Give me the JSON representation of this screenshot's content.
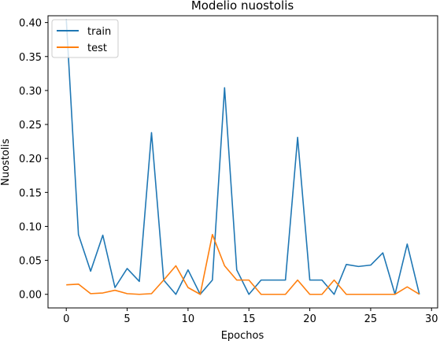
{
  "chart_data": {
    "type": "line",
    "title": "Modelio nuostolis",
    "xlabel": "Epochos",
    "ylabel": "Nuostolis",
    "xlim": [
      -1.5,
      30.5
    ],
    "ylim": [
      -0.02,
      0.41
    ],
    "xticks": [
      0,
      5,
      10,
      15,
      20,
      25,
      30
    ],
    "xtick_labels": [
      "0",
      "5",
      "10",
      "15",
      "20",
      "25",
      "30"
    ],
    "yticks": [
      0.0,
      0.05,
      0.1,
      0.15,
      0.2,
      0.25,
      0.3,
      0.35,
      0.4
    ],
    "ytick_labels": [
      "0.00",
      "0.05",
      "0.10",
      "0.15",
      "0.20",
      "0.25",
      "0.30",
      "0.35",
      "0.40"
    ],
    "grid": false,
    "legend_position": "top-left",
    "x": [
      0,
      1,
      2,
      3,
      4,
      5,
      6,
      7,
      8,
      9,
      10,
      11,
      12,
      13,
      14,
      15,
      16,
      17,
      18,
      19,
      20,
      21,
      22,
      23,
      24,
      25,
      26,
      27,
      28,
      29
    ],
    "series": [
      {
        "name": "train",
        "color": "#1f77b4",
        "values": [
          0.405,
          0.088,
          0.034,
          0.087,
          0.01,
          0.038,
          0.019,
          0.238,
          0.021,
          0.0,
          0.036,
          0.0,
          0.021,
          0.304,
          0.036,
          0.0,
          0.021,
          0.021,
          0.021,
          0.231,
          0.021,
          0.021,
          0.0,
          0.044,
          0.041,
          0.043,
          0.061,
          0.0,
          0.074,
          0.0
        ]
      },
      {
        "name": "test",
        "color": "#ff7f0e",
        "values": [
          0.014,
          0.015,
          0.001,
          0.002,
          0.006,
          0.001,
          0.0,
          0.001,
          0.021,
          0.042,
          0.01,
          0.0,
          0.088,
          0.042,
          0.021,
          0.021,
          0.0,
          0.0,
          0.0,
          0.021,
          0.0,
          0.0,
          0.021,
          0.0,
          0.0,
          0.0,
          0.0,
          0.0,
          0.011,
          0.0
        ]
      }
    ]
  }
}
